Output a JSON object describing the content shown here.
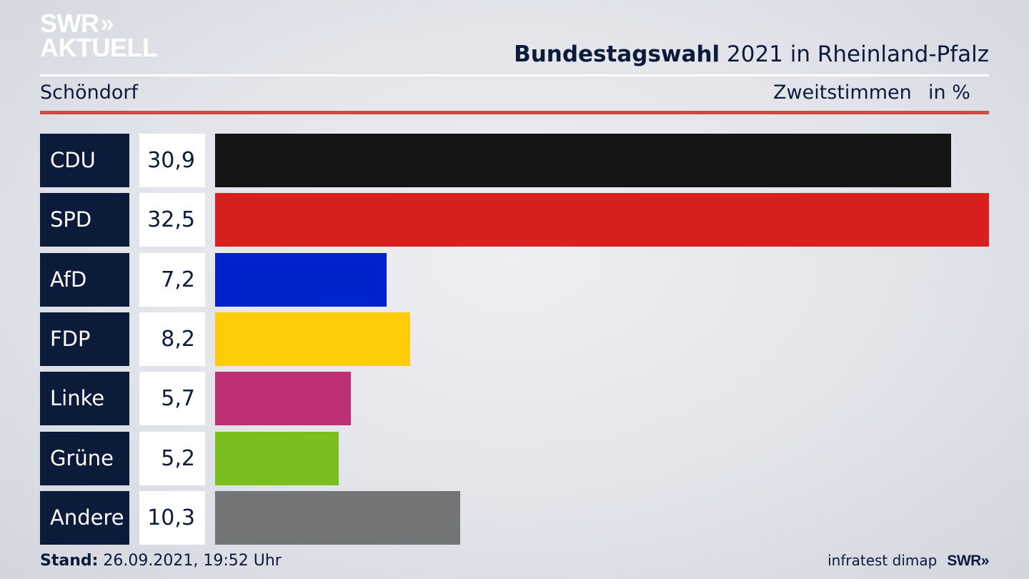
{
  "logo": {
    "line1": "SWR",
    "chevrons": "»",
    "line2": "AKTUELL"
  },
  "header": {
    "title_bold": "Bundestagswahl",
    "title_rest": " 2021 in Rheinland-Pfalz",
    "region": "Schöndorf",
    "measure": "Zweitstimmen",
    "unit": "in %"
  },
  "chart_data": {
    "type": "bar",
    "orientation": "horizontal",
    "categories": [
      "CDU",
      "SPD",
      "AfD",
      "FDP",
      "Linke",
      "Grüne",
      "Andere"
    ],
    "values": [
      30.9,
      32.5,
      7.2,
      8.2,
      5.7,
      5.2,
      10.3
    ],
    "labels": [
      "30,9",
      "32,5",
      "7,2",
      "8,2",
      "5,7",
      "5,2",
      "10,3"
    ],
    "colors": [
      "#141414",
      "#d8201f",
      "#0022cc",
      "#ffcc0a",
      "#be3074",
      "#7abf1e",
      "#747577"
    ],
    "title": "Bundestagswahl 2021 in Rheinland-Pfalz",
    "xlabel": "Zweitstimmen",
    "ylabel": "",
    "unit": "in %",
    "xlim": [
      0,
      32.5
    ]
  },
  "footer": {
    "stand_label": "Stand:",
    "stand_value": " 26.09.2021, 19:52 Uhr",
    "source": "infratest dimap",
    "brand": "SWR»"
  }
}
